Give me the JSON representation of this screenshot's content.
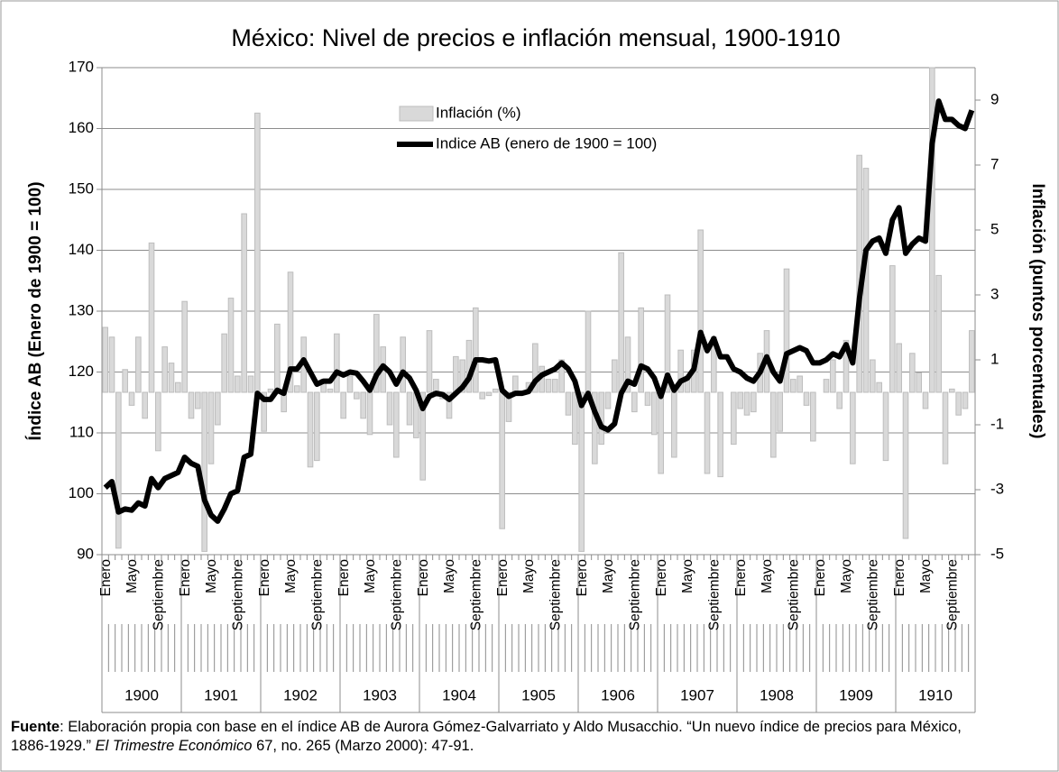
{
  "chart_data": {
    "type": "combo",
    "title": "México: Nivel de precios e inflación mensual, 1900-1910",
    "y_label": "Índice AB (Enero de 1900 = 100)",
    "y2_label": "Inflación (puntos porcentuales)",
    "categories": [
      "Enero",
      null,
      null,
      null,
      "Mayo",
      null,
      null,
      null,
      "Septiembre",
      null,
      null,
      null,
      "Enero",
      null,
      null,
      null,
      "Mayo",
      null,
      null,
      null,
      "Septiembre",
      null,
      null,
      null,
      "Enero",
      null,
      null,
      null,
      "Mayo",
      null,
      null,
      null,
      "Septiembre",
      null,
      null,
      null,
      "Enero",
      null,
      null,
      null,
      "Mayo",
      null,
      null,
      null,
      "Septiembre",
      null,
      null,
      null,
      "Enero",
      null,
      null,
      null,
      "Mayo",
      null,
      null,
      null,
      "Septiembre",
      null,
      null,
      null,
      "Enero",
      null,
      null,
      null,
      "Mayo",
      null,
      null,
      null,
      "Septiembre",
      null,
      null,
      null,
      "Enero",
      null,
      null,
      null,
      "Mayo",
      null,
      null,
      null,
      "Septiembre",
      null,
      null,
      null,
      "Enero",
      null,
      null,
      null,
      "Mayo",
      null,
      null,
      null,
      "Septiembre",
      null,
      null,
      null,
      "Enero",
      null,
      null,
      null,
      "Mayo",
      null,
      null,
      null,
      "Septiembre",
      null,
      null,
      null,
      "Enero",
      null,
      null,
      null,
      "Mayo",
      null,
      null,
      null,
      "Septiembre",
      null,
      null,
      null,
      "Enero",
      null,
      null,
      null,
      "Mayo",
      null,
      null,
      null,
      "Septiembre",
      null,
      null,
      null
    ],
    "years": [
      "1900",
      "1901",
      "1902",
      "1903",
      "1904",
      "1905",
      "1906",
      "1907",
      "1908",
      "1909",
      "1910"
    ],
    "series": [
      {
        "name": "Inflación (%)",
        "type": "bar",
        "axis": "y2",
        "color": "#d9d9d9",
        "values": [
          2.0,
          1.7,
          -4.8,
          0.7,
          -0.4,
          1.7,
          -0.8,
          4.6,
          -1.8,
          1.4,
          0.9,
          0.3,
          2.8,
          -0.8,
          -0.5,
          -4.9,
          -2.2,
          -1.0,
          1.8,
          2.9,
          0.5,
          5.5,
          0.5,
          8.6,
          -1.2,
          0.1,
          2.1,
          -0.6,
          3.7,
          0.2,
          1.7,
          -2.3,
          -2.1,
          0.4,
          0.1,
          1.8,
          -0.8,
          0.5,
          -0.2,
          -0.8,
          -1.3,
          2.4,
          1.4,
          -1.0,
          -2.0,
          1.7,
          -1.0,
          -1.4,
          -2.7,
          1.9,
          0.4,
          -0.2,
          -0.8,
          1.1,
          1.0,
          1.6,
          2.6,
          -0.2,
          -0.1,
          0.1,
          -4.2,
          -0.9,
          0.5,
          0.0,
          0.3,
          1.5,
          0.8,
          0.4,
          0.4,
          1.0,
          -0.7,
          -1.6,
          -4.9,
          2.5,
          -2.2,
          -1.6,
          -0.5,
          1.0,
          4.3,
          1.7,
          -0.6,
          2.6,
          -0.4,
          -1.3,
          -2.5,
          3.0,
          -2.0,
          1.3,
          0.5,
          1.3,
          5.0,
          -2.5,
          1.7,
          -2.6,
          0.0,
          -1.6,
          -0.5,
          -0.7,
          -0.6,
          1.2,
          1.9,
          -2.0,
          -1.2,
          3.8,
          0.4,
          0.5,
          -0.4,
          -1.5,
          0.0,
          0.4,
          1.0,
          -0.5,
          1.6,
          -2.2,
          7.3,
          6.9,
          1.0,
          0.3,
          -2.1,
          3.9,
          1.5,
          -4.5,
          1.2,
          0.6,
          -0.5,
          10,
          3.6,
          -2.2,
          0.1,
          -0.7,
          -0.5,
          1.9
        ]
      },
      {
        "name": "Indice AB (enero de 1900 = 100)",
        "type": "line",
        "color": "#000000",
        "values": [
          101,
          102,
          97,
          97.5,
          97.3,
          98.5,
          98,
          102.5,
          101,
          102.5,
          103,
          103.5,
          106,
          105,
          104.5,
          99,
          96.5,
          95.5,
          97.5,
          100,
          100.5,
          106,
          106.5,
          116.5,
          115.5,
          115.5,
          117,
          116.5,
          120.5,
          120.5,
          122,
          120,
          118,
          118.5,
          118.5,
          120,
          119.5,
          120,
          119.8,
          118.5,
          117,
          119.5,
          121,
          120,
          118,
          120,
          119,
          117,
          114,
          116,
          116.5,
          116.3,
          115.5,
          116.5,
          117.5,
          119,
          122,
          122,
          121.8,
          122,
          117,
          116,
          116.5,
          116.5,
          116.8,
          118.5,
          119.5,
          120,
          120.5,
          121.5,
          120.5,
          118.5,
          114.5,
          116.5,
          113.5,
          111,
          110.5,
          111.5,
          116.5,
          118.5,
          118,
          121,
          120.5,
          119,
          116,
          119.5,
          117,
          118.5,
          119,
          120.5,
          126.5,
          123.5,
          125.5,
          122.5,
          122.5,
          120.5,
          120,
          119,
          118.5,
          120,
          122.5,
          120,
          118.5,
          123,
          123.5,
          124,
          123.5,
          121.5,
          121.5,
          122,
          123,
          122.5,
          124.5,
          121.5,
          132,
          140,
          141.5,
          142,
          139.5,
          145,
          147,
          139.5,
          141,
          142,
          141.5,
          157.5,
          164.5,
          161.5,
          161.5,
          160.5,
          160,
          163
        ]
      }
    ],
    "ylim": [
      90,
      170
    ],
    "yticks": [
      90,
      100,
      110,
      120,
      130,
      140,
      150,
      160,
      170
    ],
    "y2lim": [
      -5,
      10
    ],
    "y2ticks": [
      -5,
      -3,
      -1,
      1,
      3,
      5,
      7,
      9
    ],
    "grid": true,
    "source": {
      "label": "Fuente",
      "text": ": Elaboración propia con base en el índice AB de Aurora Gómez-Galvarriato y Aldo Musacchio. “Un nuevo índice de precios para México, 1886-1929.” ",
      "journal": "El Trimestre Económico",
      "end": " 67, no. 265 (Marzo 2000): 47-91."
    }
  }
}
